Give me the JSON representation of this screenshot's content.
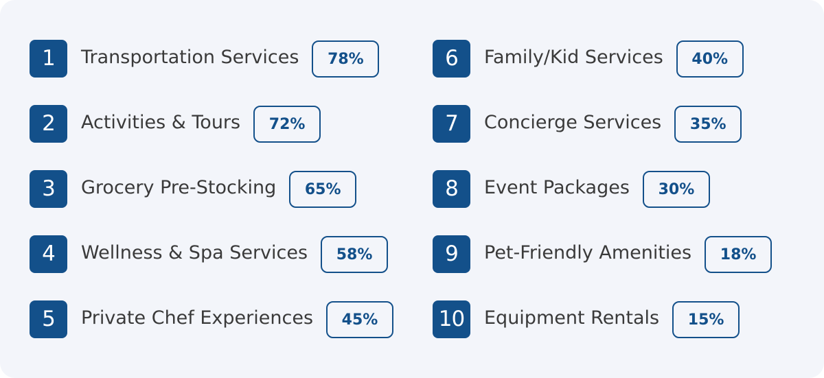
{
  "colors": {
    "background": "#f3f5fa",
    "accent": "#13508a",
    "text": "#3a3a3a"
  },
  "items": [
    {
      "number": "1",
      "label": "Transportation Services",
      "percent": "78%"
    },
    {
      "number": "2",
      "label": "Activities & Tours",
      "percent": "72%"
    },
    {
      "number": "3",
      "label": "Grocery Pre-Stocking",
      "percent": "65%"
    },
    {
      "number": "4",
      "label": "Wellness & Spa Services",
      "percent": "58%"
    },
    {
      "number": "5",
      "label": "Private Chef Experiences",
      "percent": "45%"
    },
    {
      "number": "6",
      "label": "Family/Kid Services",
      "percent": "40%"
    },
    {
      "number": "7",
      "label": "Concierge Services",
      "percent": "35%"
    },
    {
      "number": "8",
      "label": "Event Packages",
      "percent": "30%"
    },
    {
      "number": "9",
      "label": "Pet-Friendly Amenities",
      "percent": "18%"
    },
    {
      "number": "10",
      "label": "Equipment Rentals",
      "percent": "15%"
    }
  ]
}
